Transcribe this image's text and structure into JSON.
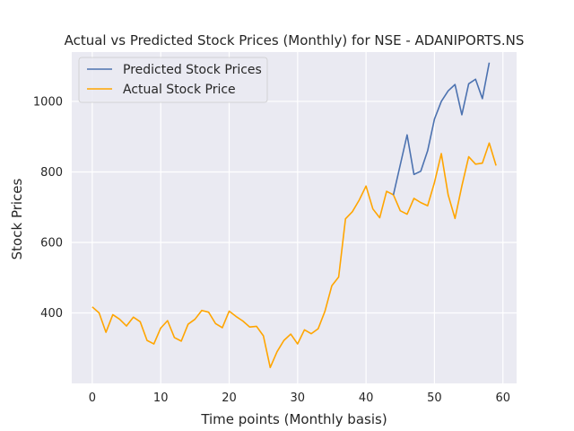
{
  "chart_data": {
    "type": "line",
    "title": "Actual vs Predicted Stock Prices (Monthly) for NSE - ADANIPORTS.NS",
    "xlabel": "Time points (Monthly basis)",
    "ylabel": "Stock Prices",
    "xlim": [
      -3,
      62
    ],
    "ylim": [
      200,
      1140
    ],
    "xticks": [
      0,
      10,
      20,
      30,
      40,
      50,
      60
    ],
    "yticks": [
      400,
      600,
      800,
      1000
    ],
    "grid": true,
    "legend_position": "top-left",
    "series": [
      {
        "name": "Predicted Stock Prices",
        "color": "#4c72b0",
        "x": [
          44,
          45,
          46,
          47,
          48,
          49,
          50,
          51,
          52,
          53,
          54,
          55,
          56,
          57,
          58
        ],
        "y": [
          735,
          820,
          905,
          793,
          802,
          860,
          950,
          1000,
          1030,
          1048,
          962,
          1050,
          1063,
          1008,
          1110
        ]
      },
      {
        "name": "Actual Stock Price",
        "color": "#ffa500",
        "x": [
          0,
          1,
          2,
          3,
          4,
          5,
          6,
          7,
          8,
          9,
          10,
          11,
          12,
          13,
          14,
          15,
          16,
          17,
          18,
          19,
          20,
          21,
          22,
          23,
          24,
          25,
          26,
          27,
          28,
          29,
          30,
          31,
          32,
          33,
          34,
          35,
          36,
          37,
          38,
          39,
          40,
          41,
          42,
          43,
          44,
          45,
          46,
          47,
          48,
          49,
          50,
          51,
          52,
          53,
          54,
          55,
          56,
          57,
          58,
          59
        ],
        "y": [
          417,
          400,
          345,
          395,
          382,
          363,
          388,
          375,
          322,
          312,
          357,
          378,
          330,
          320,
          368,
          382,
          407,
          402,
          370,
          358,
          405,
          390,
          377,
          360,
          362,
          335,
          245,
          290,
          322,
          340,
          312,
          352,
          341,
          355,
          405,
          477,
          502,
          667,
          687,
          720,
          760,
          695,
          670,
          745,
          735,
          690,
          680,
          725,
          713,
          704,
          770,
          852,
          735,
          668,
          760,
          843,
          822,
          825,
          882,
          818
        ]
      }
    ]
  }
}
